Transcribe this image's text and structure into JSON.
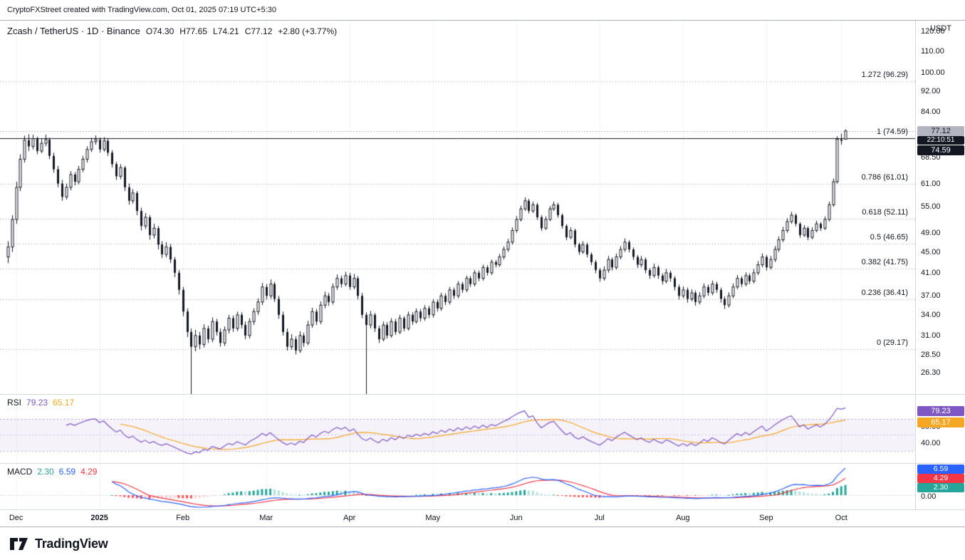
{
  "attribution": "CryptoFXStreet created with TradingView.com, Oct 01, 2025 07:19 UTC+5:30",
  "legend": {
    "title": "Zcash / TetherUS · 1D · Binance",
    "ohlc": [
      "O74.30",
      "H77.65",
      "L74.21",
      "C77.12"
    ],
    "change": "+2.80 (+3.77%)"
  },
  "axis_currency": "USDT",
  "price_badges": {
    "last": "77.12",
    "countdown": "22:10:51",
    "fib": "74.59"
  },
  "rsi_legend": {
    "title": "RSI",
    "value": "79.23",
    "ma_value": "65.17"
  },
  "macd_legend": {
    "title": "MACD",
    "hist": "2.30",
    "macd": "6.59",
    "signal": "4.29"
  },
  "macd_axis": {
    "zero": "0.00"
  },
  "footer": {
    "brand": "TradingView"
  },
  "colors": {
    "up": "#FFFFFF",
    "down": "#131722",
    "candle": "#131722",
    "grid": "#F0F3FA",
    "fib_line": "#9598A1",
    "fib_solid": "#131722",
    "last_price_line": "#B2B5BE",
    "rsi_line": "#7E57C2",
    "rsi_ma": "#F5A623",
    "rsi_band": "rgba(126,87,194,0.55)",
    "rsi_fill": "rgba(126,87,194,0.08)",
    "macd_line": "#2962FF",
    "signal_line": "#F23645",
    "hist_up": "#26A69A",
    "hist_up_weak": "#B2DFDB",
    "hist_down": "#FF5252",
    "hist_down_weak": "#FFCDD2"
  },
  "chart_data": {
    "type": "candlestick",
    "title": "Zcash / TetherUS · 1D · Binance",
    "symbol": "ZEC/USDT",
    "interval": "1D",
    "scale": "log",
    "price_range": [
      23.9,
      126
    ],
    "last_price": 77.12,
    "fib_badge_price": 74.59,
    "last_bar": {
      "open": 74.3,
      "high": 77.65,
      "low": 74.21,
      "close": 77.12,
      "change": 2.8,
      "change_pct": 3.77
    },
    "price_ticks": [
      {
        "label": "120.00",
        "value": 120
      },
      {
        "label": "110.00",
        "value": 110
      },
      {
        "label": "100.00",
        "value": 100
      },
      {
        "label": "92.00",
        "value": 92
      },
      {
        "label": "84.00",
        "value": 84
      },
      {
        "label": "68.50",
        "value": 68.5
      },
      {
        "label": "61.00",
        "value": 61
      },
      {
        "label": "55.00",
        "value": 55
      },
      {
        "label": "49.00",
        "value": 49
      },
      {
        "label": "45.00",
        "value": 45
      },
      {
        "label": "41.00",
        "value": 41
      },
      {
        "label": "37.00",
        "value": 37
      },
      {
        "label": "34.00",
        "value": 34
      },
      {
        "label": "31.00",
        "value": 31
      },
      {
        "label": "28.50",
        "value": 28.5
      },
      {
        "label": "26.30",
        "value": 26.3
      }
    ],
    "time_labels": [
      {
        "label": "Dec",
        "i": 2
      },
      {
        "label": "2025",
        "i": 22,
        "bold": true
      },
      {
        "label": "Feb",
        "i": 42
      },
      {
        "label": "Mar",
        "i": 62
      },
      {
        "label": "Apr",
        "i": 82
      },
      {
        "label": "May",
        "i": 102
      },
      {
        "label": "Jun",
        "i": 122
      },
      {
        "label": "Jul",
        "i": 142
      },
      {
        "label": "Aug",
        "i": 162
      },
      {
        "label": "Sep",
        "i": 182
      },
      {
        "label": "Oct",
        "i": 200
      }
    ],
    "fib_levels": [
      {
        "label": "1.272 (96.29)",
        "price": 96.29
      },
      {
        "label": "1 (74.59)",
        "price": 74.59,
        "solid": true
      },
      {
        "label": "0.786 (61.01)",
        "price": 61.01
      },
      {
        "label": "0.618 (52.11)",
        "price": 52.11
      },
      {
        "label": "0.5 (46.65)",
        "price": 46.65
      },
      {
        "label": "0.382 (41.75)",
        "price": 41.75
      },
      {
        "label": "0.236 (36.41)",
        "price": 36.41
      },
      {
        "label": "0 (29.17)",
        "price": 29.17
      }
    ],
    "indicators": {
      "rsi": {
        "length": 14,
        "ma_length": 14,
        "upper_band": 70,
        "lower_band": 30,
        "last": 79.23,
        "ma_last": 65.17,
        "axis_ticks": [
          {
            "label": "60.00",
            "value": 60
          },
          {
            "label": "40.00",
            "value": 40
          }
        ]
      },
      "macd": {
        "fast": 12,
        "slow": 26,
        "signal": 9,
        "last_macd": 6.59,
        "last_signal": 4.29,
        "last_hist": 2.3
      }
    },
    "candles": [
      [
        44.0,
        47.2,
        42.8,
        46.0
      ],
      [
        46.0,
        53.0,
        45.0,
        52.0
      ],
      [
        52.0,
        61.5,
        51.0,
        60.0
      ],
      [
        60.0,
        69.5,
        59.0,
        68.0
      ],
      [
        68.0,
        75.5,
        67.0,
        74.0
      ],
      [
        74.0,
        76.0,
        70.5,
        72.0
      ],
      [
        72.0,
        75.8,
        71.0,
        74.5
      ],
      [
        74.5,
        75.2,
        69.5,
        70.5
      ],
      [
        70.5,
        74.6,
        69.8,
        73.0
      ],
      [
        73.0,
        75.9,
        72.0,
        74.2
      ],
      [
        74.2,
        74.8,
        68.0,
        69.0
      ],
      [
        69.0,
        70.0,
        64.0,
        65.0
      ],
      [
        65.0,
        66.0,
        60.0,
        61.0
      ],
      [
        61.0,
        62.0,
        56.5,
        57.5
      ],
      [
        57.5,
        61.0,
        56.8,
        60.0
      ],
      [
        60.0,
        64.5,
        59.2,
        63.5
      ],
      [
        63.5,
        64.2,
        60.5,
        61.5
      ],
      [
        61.5,
        66.0,
        60.8,
        65.0
      ],
      [
        65.0,
        69.0,
        64.2,
        68.0
      ],
      [
        68.0,
        72.0,
        67.0,
        71.0
      ],
      [
        71.0,
        74.8,
        70.2,
        73.5
      ],
      [
        73.5,
        75.6,
        72.5,
        74.2
      ],
      [
        74.2,
        74.9,
        70.0,
        71.0
      ],
      [
        71.0,
        75.0,
        70.3,
        73.8
      ],
      [
        73.8,
        74.4,
        69.0,
        70.0
      ],
      [
        70.0,
        70.8,
        65.5,
        66.5
      ],
      [
        66.5,
        67.2,
        62.0,
        63.0
      ],
      [
        63.0,
        66.5,
        62.2,
        65.5
      ],
      [
        65.5,
        66.0,
        59.0,
        60.0
      ],
      [
        60.0,
        61.0,
        55.5,
        56.5
      ],
      [
        56.5,
        59.5,
        55.8,
        58.5
      ],
      [
        58.5,
        59.0,
        53.0,
        54.0
      ],
      [
        54.0,
        54.8,
        49.5,
        50.5
      ],
      [
        50.5,
        53.5,
        49.8,
        52.5
      ],
      [
        52.5,
        53.0,
        47.5,
        48.5
      ],
      [
        48.5,
        51.0,
        47.8,
        50.0
      ],
      [
        50.0,
        50.5,
        45.5,
        46.5
      ],
      [
        46.5,
        47.2,
        43.8,
        44.5
      ],
      [
        44.5,
        47.0,
        43.9,
        46.0
      ],
      [
        46.0,
        46.6,
        42.8,
        43.5
      ],
      [
        43.5,
        44.0,
        40.2,
        41.0
      ],
      [
        41.0,
        41.5,
        37.2,
        38.0
      ],
      [
        38.0,
        38.5,
        33.8,
        34.5
      ],
      [
        34.5,
        35.0,
        30.8,
        31.5
      ],
      [
        31.5,
        32.0,
        23.8,
        29.5
      ],
      [
        29.5,
        31.8,
        28.9,
        31.0
      ],
      [
        31.0,
        31.5,
        29.2,
        29.8
      ],
      [
        29.8,
        32.6,
        29.4,
        32.0
      ],
      [
        32.0,
        32.4,
        30.0,
        30.5
      ],
      [
        30.5,
        33.6,
        30.1,
        33.0
      ],
      [
        33.0,
        33.4,
        31.0,
        31.5
      ],
      [
        31.5,
        32.0,
        29.5,
        30.0
      ],
      [
        30.0,
        32.3,
        29.6,
        31.8
      ],
      [
        31.8,
        34.0,
        31.3,
        33.5
      ],
      [
        33.5,
        33.9,
        31.5,
        32.0
      ],
      [
        32.0,
        34.5,
        31.6,
        34.0
      ],
      [
        34.0,
        34.4,
        32.0,
        32.5
      ],
      [
        32.5,
        33.0,
        30.5,
        31.0
      ],
      [
        31.0,
        33.5,
        30.6,
        33.0
      ],
      [
        33.0,
        35.0,
        32.5,
        34.5
      ],
      [
        34.5,
        36.6,
        34.0,
        36.0
      ],
      [
        36.0,
        39.2,
        35.5,
        38.5
      ],
      [
        38.5,
        39.0,
        36.4,
        37.0
      ],
      [
        37.0,
        39.8,
        36.5,
        39.0
      ],
      [
        39.0,
        39.4,
        36.0,
        36.5
      ],
      [
        36.5,
        37.0,
        33.4,
        34.0
      ],
      [
        34.0,
        34.5,
        31.0,
        31.5
      ],
      [
        31.5,
        32.0,
        29.0,
        29.5
      ],
      [
        29.5,
        31.2,
        29.1,
        30.5
      ],
      [
        30.5,
        30.9,
        28.5,
        29.0
      ],
      [
        29.0,
        31.6,
        28.7,
        31.0
      ],
      [
        31.0,
        31.4,
        29.5,
        30.0
      ],
      [
        30.0,
        33.1,
        29.7,
        32.5
      ],
      [
        32.5,
        35.1,
        32.1,
        34.5
      ],
      [
        34.5,
        34.9,
        32.5,
        33.0
      ],
      [
        33.0,
        36.1,
        32.6,
        35.5
      ],
      [
        35.5,
        37.7,
        35.0,
        37.0
      ],
      [
        37.0,
        37.5,
        35.4,
        36.0
      ],
      [
        36.0,
        39.1,
        35.6,
        38.5
      ],
      [
        38.5,
        40.7,
        38.0,
        40.0
      ],
      [
        40.0,
        40.5,
        38.4,
        39.0
      ],
      [
        39.0,
        41.2,
        38.6,
        40.5
      ],
      [
        40.5,
        41.0,
        38.0,
        38.5
      ],
      [
        38.5,
        40.8,
        38.1,
        40.0
      ],
      [
        40.0,
        40.4,
        36.4,
        37.0
      ],
      [
        37.0,
        37.5,
        33.5,
        34.0
      ],
      [
        34.0,
        34.4,
        23.8,
        32.5
      ],
      [
        32.5,
        34.6,
        32.0,
        34.0
      ],
      [
        34.0,
        34.3,
        31.5,
        32.0
      ],
      [
        32.0,
        32.4,
        30.0,
        30.5
      ],
      [
        30.5,
        33.0,
        30.2,
        32.5
      ],
      [
        32.5,
        32.9,
        30.6,
        31.0
      ],
      [
        31.0,
        33.5,
        30.7,
        33.0
      ],
      [
        33.0,
        33.4,
        31.1,
        31.5
      ],
      [
        31.5,
        34.0,
        31.2,
        33.5
      ],
      [
        33.5,
        33.8,
        31.6,
        32.0
      ],
      [
        32.0,
        34.5,
        31.7,
        34.0
      ],
      [
        34.0,
        34.4,
        32.5,
        33.0
      ],
      [
        33.0,
        35.0,
        32.7,
        34.5
      ],
      [
        34.5,
        34.9,
        33.0,
        33.5
      ],
      [
        33.5,
        35.5,
        33.1,
        35.0
      ],
      [
        35.0,
        35.4,
        33.5,
        34.0
      ],
      [
        34.0,
        36.5,
        33.6,
        36.0
      ],
      [
        36.0,
        36.4,
        34.5,
        35.0
      ],
      [
        35.0,
        37.5,
        34.6,
        37.0
      ],
      [
        37.0,
        37.4,
        35.5,
        36.0
      ],
      [
        36.0,
        38.5,
        35.6,
        38.0
      ],
      [
        38.0,
        38.4,
        36.5,
        37.0
      ],
      [
        37.0,
        39.5,
        36.6,
        39.0
      ],
      [
        39.0,
        39.4,
        37.5,
        38.0
      ],
      [
        38.0,
        40.5,
        37.6,
        40.0
      ],
      [
        40.0,
        40.4,
        38.5,
        39.0
      ],
      [
        39.0,
        41.5,
        38.6,
        41.0
      ],
      [
        41.0,
        41.4,
        39.5,
        40.0
      ],
      [
        40.0,
        42.5,
        39.6,
        42.0
      ],
      [
        42.0,
        42.4,
        40.5,
        41.0
      ],
      [
        41.0,
        43.5,
        40.6,
        43.0
      ],
      [
        43.0,
        43.4,
        42.0,
        42.5
      ],
      [
        42.5,
        44.6,
        42.1,
        44.0
      ],
      [
        44.0,
        46.1,
        43.5,
        45.5
      ],
      [
        45.5,
        47.7,
        45.0,
        47.0
      ],
      [
        47.0,
        50.2,
        46.5,
        49.5
      ],
      [
        49.5,
        52.8,
        49.0,
        52.0
      ],
      [
        52.0,
        55.3,
        51.5,
        54.5
      ],
      [
        54.5,
        57.4,
        54.0,
        56.5
      ],
      [
        56.5,
        57.0,
        53.4,
        54.0
      ],
      [
        54.0,
        56.3,
        53.5,
        55.5
      ],
      [
        55.5,
        56.0,
        51.9,
        52.5
      ],
      [
        52.5,
        53.0,
        49.4,
        50.0
      ],
      [
        50.0,
        52.7,
        49.6,
        52.0
      ],
      [
        52.0,
        55.2,
        51.6,
        54.5
      ],
      [
        54.5,
        56.3,
        54.0,
        55.5
      ],
      [
        55.5,
        56.0,
        52.4,
        53.0
      ],
      [
        53.0,
        53.4,
        49.9,
        50.5
      ],
      [
        50.5,
        50.9,
        47.4,
        48.0
      ],
      [
        48.0,
        50.2,
        47.6,
        49.5
      ],
      [
        49.5,
        49.9,
        45.9,
        46.5
      ],
      [
        46.5,
        46.9,
        44.4,
        45.0
      ],
      [
        45.0,
        47.2,
        44.6,
        46.5
      ],
      [
        46.5,
        46.9,
        43.9,
        44.5
      ],
      [
        44.5,
        44.9,
        42.4,
        43.0
      ],
      [
        43.0,
        43.4,
        40.9,
        41.5
      ],
      [
        41.5,
        41.9,
        39.4,
        40.0
      ],
      [
        40.0,
        42.2,
        39.6,
        41.5
      ],
      [
        41.5,
        44.2,
        41.0,
        43.5
      ],
      [
        43.5,
        43.9,
        41.4,
        42.0
      ],
      [
        42.0,
        44.7,
        41.6,
        44.0
      ],
      [
        44.0,
        46.2,
        43.5,
        45.5
      ],
      [
        45.5,
        47.8,
        45.0,
        47.0
      ],
      [
        47.0,
        47.4,
        44.9,
        45.5
      ],
      [
        45.5,
        45.9,
        43.4,
        44.0
      ],
      [
        44.0,
        44.4,
        41.9,
        42.5
      ],
      [
        42.5,
        44.2,
        42.0,
        43.5
      ],
      [
        43.5,
        43.9,
        40.9,
        41.5
      ],
      [
        41.5,
        41.9,
        39.9,
        40.5
      ],
      [
        40.5,
        42.7,
        40.1,
        42.0
      ],
      [
        42.0,
        42.4,
        39.9,
        40.5
      ],
      [
        40.5,
        40.9,
        38.9,
        39.5
      ],
      [
        39.5,
        41.7,
        39.1,
        41.0
      ],
      [
        41.0,
        41.4,
        39.4,
        40.0
      ],
      [
        40.0,
        40.4,
        37.9,
        38.5
      ],
      [
        38.5,
        38.9,
        36.4,
        37.0
      ],
      [
        37.0,
        38.6,
        36.6,
        38.0
      ],
      [
        38.0,
        38.4,
        35.9,
        36.5
      ],
      [
        36.5,
        38.1,
        36.1,
        37.5
      ],
      [
        37.5,
        37.9,
        35.4,
        36.0
      ],
      [
        36.0,
        37.6,
        35.6,
        37.0
      ],
      [
        37.0,
        39.1,
        36.6,
        38.5
      ],
      [
        38.5,
        38.9,
        37.0,
        37.5
      ],
      [
        37.5,
        39.6,
        37.1,
        39.0
      ],
      [
        39.0,
        39.4,
        37.5,
        38.0
      ],
      [
        38.0,
        38.4,
        35.9,
        36.5
      ],
      [
        36.5,
        36.9,
        34.9,
        35.5
      ],
      [
        35.5,
        37.6,
        35.1,
        37.0
      ],
      [
        37.0,
        39.1,
        36.6,
        38.5
      ],
      [
        38.5,
        40.6,
        38.1,
        40.0
      ],
      [
        40.0,
        40.4,
        38.5,
        39.0
      ],
      [
        39.0,
        41.1,
        38.6,
        40.5
      ],
      [
        40.5,
        40.9,
        39.0,
        39.5
      ],
      [
        39.5,
        41.7,
        39.1,
        41.0
      ],
      [
        41.0,
        43.2,
        40.6,
        42.5
      ],
      [
        42.5,
        44.7,
        42.0,
        44.0
      ],
      [
        44.0,
        44.4,
        41.4,
        42.0
      ],
      [
        42.0,
        44.2,
        41.6,
        43.5
      ],
      [
        43.5,
        46.2,
        43.0,
        45.5
      ],
      [
        45.5,
        48.2,
        45.0,
        47.5
      ],
      [
        47.5,
        50.3,
        47.0,
        49.5
      ],
      [
        49.5,
        52.3,
        49.0,
        51.5
      ],
      [
        51.5,
        53.8,
        51.0,
        53.0
      ],
      [
        53.0,
        53.4,
        50.4,
        51.0
      ],
      [
        51.0,
        51.4,
        47.9,
        48.5
      ],
      [
        48.5,
        50.7,
        48.1,
        50.0
      ],
      [
        50.0,
        50.4,
        47.4,
        48.0
      ],
      [
        48.0,
        50.2,
        47.6,
        49.5
      ],
      [
        49.5,
        51.7,
        49.1,
        51.0
      ],
      [
        51.0,
        51.4,
        49.4,
        50.0
      ],
      [
        50.0,
        52.7,
        49.6,
        52.0
      ],
      [
        52.0,
        56.3,
        51.5,
        55.5
      ],
      [
        55.5,
        62.4,
        55.0,
        61.5
      ],
      [
        61.5,
        75.3,
        61.0,
        74.3
      ],
      [
        74.3,
        76.2,
        72.5,
        73.8
      ],
      [
        74.3,
        77.65,
        74.21,
        77.12
      ]
    ]
  }
}
